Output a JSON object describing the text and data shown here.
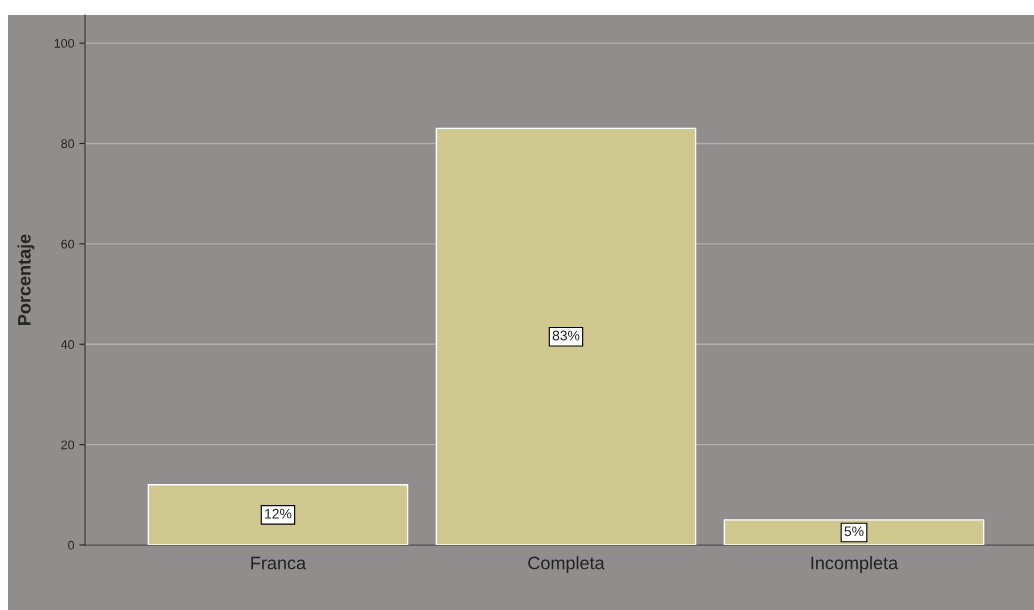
{
  "chart_data": {
    "type": "bar",
    "ylabel": "Porcentaje",
    "categories": [
      "Franca",
      "Completa",
      "Incompleta"
    ],
    "values": [
      12,
      83,
      5
    ],
    "value_labels": [
      "12%",
      "83%",
      "5%"
    ],
    "color": "#cfc98f",
    "ylim": [
      0,
      105.6
    ],
    "yticks": [
      0,
      20,
      40,
      60,
      80,
      100
    ],
    "grid": "y"
  }
}
